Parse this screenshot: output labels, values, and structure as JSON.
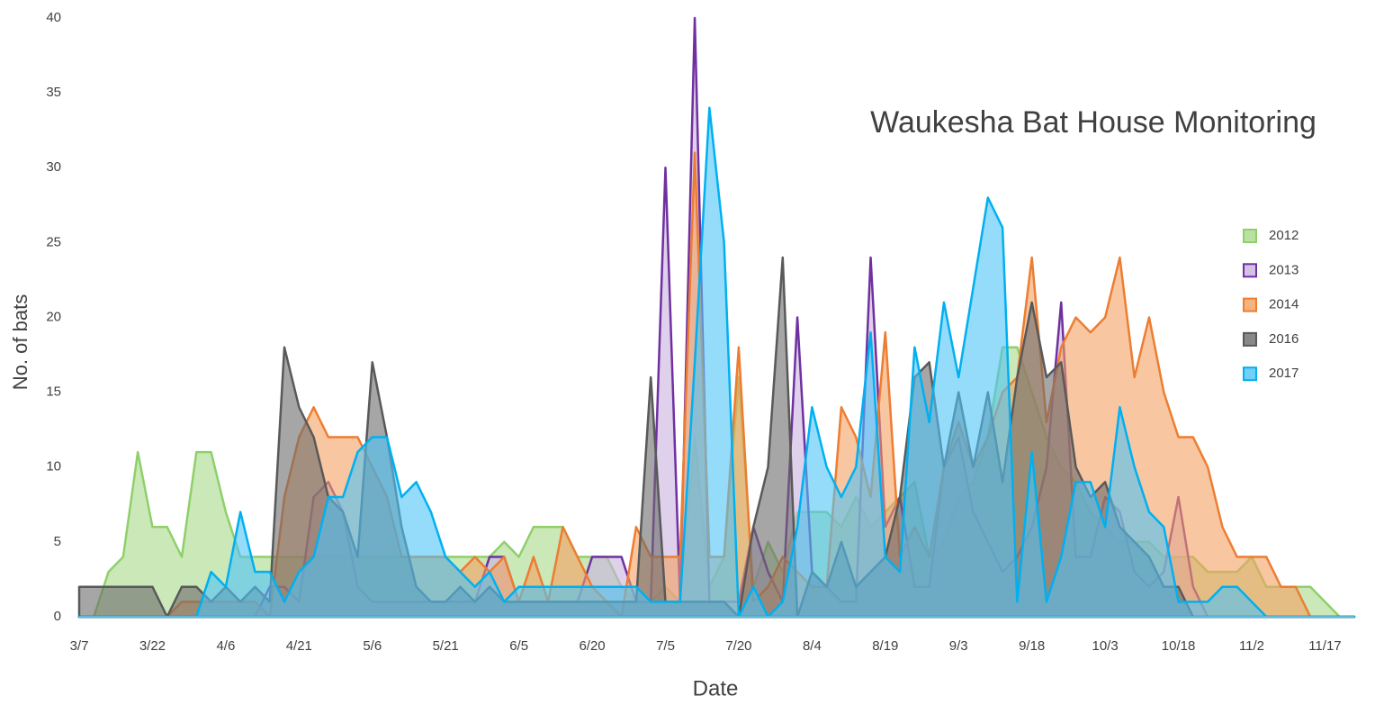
{
  "chart_data": {
    "type": "area",
    "title": "Waukesha Bat House Monitoring",
    "xlabel": "Date",
    "ylabel": "No. of bats",
    "categories": [
      "3/7",
      null,
      null,
      null,
      null,
      "3/22",
      null,
      null,
      null,
      null,
      "4/6",
      null,
      null,
      null,
      null,
      "4/21",
      null,
      null,
      null,
      null,
      "5/6",
      null,
      null,
      null,
      null,
      "5/21",
      null,
      null,
      null,
      null,
      "6/5",
      null,
      null,
      null,
      null,
      "6/20",
      null,
      null,
      null,
      null,
      "7/5",
      null,
      null,
      null,
      null,
      "7/20",
      null,
      null,
      null,
      null,
      "8/4",
      null,
      null,
      null,
      null,
      "8/19",
      null,
      null,
      null,
      null,
      "9/3",
      null,
      null,
      null,
      null,
      "9/18",
      null,
      null,
      null,
      null,
      "10/3",
      null,
      null,
      null,
      null,
      "10/18",
      null,
      null,
      null,
      null,
      "11/2",
      null,
      null,
      null,
      null,
      "11/17",
      null,
      null
    ],
    "ylim": [
      0,
      40
    ],
    "yticks": [
      0,
      5,
      10,
      15,
      20,
      25,
      30,
      35,
      40
    ],
    "grid": false,
    "legend": "right",
    "series": [
      {
        "name": "2012",
        "color": "#8fd06a",
        "fill": "#a9d98a",
        "values": [
          0,
          0,
          3,
          4,
          11,
          6,
          6,
          4,
          11,
          11,
          7,
          4,
          4,
          4,
          4,
          4,
          4,
          4,
          4,
          4,
          4,
          4,
          4,
          4,
          4,
          4,
          4,
          4,
          4,
          5,
          4,
          6,
          6,
          6,
          4,
          4,
          4,
          2,
          1,
          1,
          2,
          1,
          12,
          2,
          4,
          16,
          2,
          5,
          3,
          7,
          7,
          7,
          6,
          8,
          6,
          7,
          8,
          9,
          4,
          5,
          8,
          9,
          12,
          18,
          18,
          15,
          12,
          10,
          9,
          7,
          6,
          5,
          5,
          5,
          4,
          4,
          4,
          3,
          3,
          3,
          4,
          2,
          2,
          2,
          2,
          1,
          0,
          0
        ]
      },
      {
        "name": "2013",
        "color": "#7030a0",
        "fill": "#c9b2e0",
        "values": [
          0,
          0,
          0,
          0,
          0,
          0,
          0,
          0,
          0,
          0,
          0,
          0,
          0,
          2,
          2,
          1,
          8,
          9,
          7,
          2,
          1,
          1,
          1,
          1,
          1,
          1,
          1,
          1,
          4,
          4,
          1,
          1,
          1,
          1,
          1,
          4,
          4,
          4,
          1,
          1,
          30,
          1,
          40,
          1,
          1,
          1,
          6,
          3,
          1,
          20,
          3,
          2,
          1,
          1,
          24,
          6,
          8,
          2,
          2,
          10,
          12,
          7,
          5,
          3,
          4,
          6,
          10,
          21,
          4,
          4,
          8,
          7,
          3,
          2,
          3,
          8,
          2,
          0,
          0,
          0,
          0,
          0,
          0,
          0,
          0,
          0,
          0,
          0
        ]
      },
      {
        "name": "2014",
        "color": "#ed7d31",
        "fill": "#f4a060",
        "values": [
          0,
          0,
          0,
          0,
          0,
          0,
          0,
          1,
          1,
          1,
          1,
          1,
          1,
          0,
          8,
          12,
          14,
          12,
          12,
          12,
          10,
          8,
          4,
          4,
          4,
          4,
          3,
          4,
          3,
          4,
          1,
          4,
          1,
          6,
          4,
          2,
          1,
          0,
          6,
          4,
          4,
          4,
          31,
          4,
          4,
          18,
          1,
          2,
          4,
          3,
          2,
          2,
          14,
          12,
          8,
          19,
          4,
          6,
          4,
          10,
          13,
          10,
          12,
          15,
          16,
          24,
          13,
          18,
          20,
          19,
          20,
          24,
          16,
          20,
          15,
          12,
          12,
          10,
          6,
          4,
          4,
          4,
          2,
          2,
          0,
          0,
          0,
          0
        ]
      },
      {
        "name": "2016",
        "color": "#595959",
        "fill": "#6b6b6b",
        "values": [
          2,
          2,
          2,
          2,
          2,
          2,
          0,
          2,
          2,
          1,
          2,
          1,
          2,
          1,
          18,
          14,
          12,
          8,
          7,
          4,
          17,
          12,
          6,
          2,
          1,
          1,
          2,
          1,
          2,
          1,
          1,
          1,
          1,
          1,
          1,
          1,
          1,
          1,
          1,
          16,
          1,
          1,
          1,
          1,
          1,
          0,
          6,
          10,
          24,
          0,
          3,
          2,
          5,
          2,
          3,
          4,
          8,
          16,
          17,
          10,
          15,
          10,
          15,
          9,
          16,
          21,
          16,
          17,
          10,
          8,
          9,
          6,
          5,
          4,
          2,
          2,
          0,
          0,
          0,
          0,
          0,
          0,
          0,
          0,
          0,
          0,
          0,
          0
        ]
      },
      {
        "name": "2017",
        "color": "#00b0f0",
        "fill": "#4fc3f7",
        "values": [
          0,
          0,
          0,
          0,
          0,
          0,
          0,
          0,
          0,
          3,
          2,
          7,
          3,
          3,
          1,
          3,
          4,
          8,
          8,
          11,
          12,
          12,
          8,
          9,
          7,
          4,
          3,
          2,
          3,
          1,
          2,
          2,
          2,
          2,
          2,
          2,
          2,
          2,
          2,
          1,
          1,
          1,
          17,
          34,
          25,
          0,
          2,
          0,
          1,
          6,
          14,
          10,
          8,
          10,
          19,
          4,
          3,
          18,
          13,
          21,
          16,
          22,
          28,
          26,
          1,
          11,
          1,
          4,
          9,
          9,
          6,
          14,
          10,
          7,
          6,
          1,
          1,
          1,
          2,
          2,
          1,
          0,
          0,
          0,
          0,
          0,
          0,
          0
        ]
      }
    ]
  }
}
